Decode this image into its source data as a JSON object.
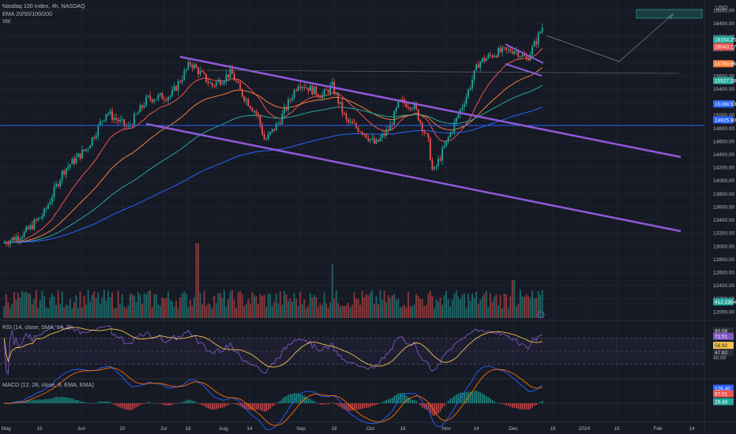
{
  "header": {
    "symbol_title": "Nasdaq 100 Index, 4h, NASDAQ",
    "ema_label": "EMA 20/50/100/200",
    "vol_label": "Vol",
    "rsi_label": "RSI (14, close, SMA, 14, 2)",
    "macd_label": "MACD (12, 26, close, 9, EMA, EMA)",
    "currency": "USD"
  },
  "colors": {
    "background": "#161a25",
    "grid": "#232836",
    "bull": "#26a69a",
    "bear": "#ef5350",
    "channel": "#8e5ad6",
    "horizontal_line": "#2962ff",
    "ema20": "#ef5350",
    "ema50": "#f57c3a",
    "ema100": "#26a69a",
    "ema200": "#2962ff",
    "rsi": "#7e57c2",
    "rsi_sma": "#f2c14e",
    "macd": "#2962ff",
    "signal": "#ff6d00"
  },
  "price_axis": {
    "ticks": [
      "16600.00",
      "16400.00",
      "16200.00",
      "16000.00",
      "15800.00",
      "15600.00",
      "15400.00",
      "15200.00",
      "15000.00",
      "14800.00",
      "14600.00",
      "14400.00",
      "14200.00",
      "14000.00",
      "13800.00",
      "13600.00",
      "13400.00",
      "13200.00",
      "13000.00",
      "12800.00",
      "12600.00",
      "12400.00",
      "12200.00",
      "12000.00"
    ],
    "tags": [
      {
        "label": "16154.25",
        "value": 16154.25,
        "bg": "#26a69a",
        "fg": "#ffffff"
      },
      {
        "label": "16043.17",
        "value": 16043.17,
        "bg": "#ef5350",
        "fg": "#ffffff"
      },
      {
        "label": "15783.66",
        "value": 15783.66,
        "bg": "#f57c3a",
        "fg": "#ffffff"
      },
      {
        "label": "15527.28",
        "value": 15527.28,
        "bg": "#26a69a",
        "fg": "#ffffff"
      },
      {
        "label": "15168.53",
        "value": 15168.53,
        "bg": "#2962ff",
        "fg": "#ffffff"
      },
      {
        "label": "14925.90",
        "value": 14925.9,
        "bg": "#2962ff",
        "fg": "#ffffff"
      },
      {
        "label": "412.1904K",
        "value": 12150,
        "bg": "#26a69a",
        "fg": "#ffffff"
      }
    ]
  },
  "rsi_axis": {
    "ticks": [
      "40.00"
    ],
    "tags": [
      {
        "label": "80.68",
        "value": 80.68,
        "bg": "#2a2e39",
        "fg": "#d1d4dc"
      },
      {
        "label": "72.51",
        "value": 72.51,
        "bg": "#7e57c2",
        "fg": "#ffffff"
      },
      {
        "label": "58.92",
        "value": 58.92,
        "bg": "#f2c14e",
        "fg": "#161a25"
      },
      {
        "label": "47.82",
        "value": 47.82,
        "bg": "#2a2e39",
        "fg": "#d1d4dc"
      }
    ]
  },
  "macd_axis": {
    "tags": [
      {
        "label": "126.40",
        "value": 126.4,
        "bg": "#2962ff",
        "fg": "#ffffff"
      },
      {
        "label": "97.01",
        "value": 97.01,
        "bg": "#ef5350",
        "fg": "#ffffff"
      },
      {
        "label": "29.40",
        "value": 29.4,
        "bg": "#26a69a",
        "fg": "#ffffff"
      }
    ]
  },
  "time_axis": {
    "labels": [
      "May",
      "15",
      "Jun",
      "20",
      "Jul",
      "18",
      "Aug",
      "14",
      "Sep",
      "18",
      "Oct",
      "16",
      "Nov",
      "14",
      "Dec",
      "18",
      "2024",
      "15",
      "Feb",
      "14"
    ]
  },
  "chart_data": {
    "type": "candlestick",
    "title": "Nasdaq 100 Index, 4h, NASDAQ",
    "x_range": [
      "May 2023",
      "Feb 2024"
    ],
    "y_unit": "USD",
    "ylim": [
      12000,
      16700
    ],
    "close_path": [
      {
        "date": "2023-05-01",
        "close": 13050
      },
      {
        "date": "2023-05-10",
        "close": 13200
      },
      {
        "date": "2023-05-18",
        "close": 13500
      },
      {
        "date": "2023-05-26",
        "close": 14150
      },
      {
        "date": "2023-06-05",
        "close": 14500
      },
      {
        "date": "2023-06-13",
        "close": 15050
      },
      {
        "date": "2023-06-22",
        "close": 14800
      },
      {
        "date": "2023-06-30",
        "close": 15250
      },
      {
        "date": "2023-07-10",
        "close": 15300
      },
      {
        "date": "2023-07-18",
        "close": 15800
      },
      {
        "date": "2023-07-27",
        "close": 15450
      },
      {
        "date": "2023-08-04",
        "close": 15650
      },
      {
        "date": "2023-08-08",
        "close": 15350
      },
      {
        "date": "2023-08-15",
        "close": 15000
      },
      {
        "date": "2023-08-18",
        "close": 14600
      },
      {
        "date": "2023-08-24",
        "close": 14900
      },
      {
        "date": "2023-09-01",
        "close": 15500
      },
      {
        "date": "2023-09-11",
        "close": 15300
      },
      {
        "date": "2023-09-15",
        "close": 15450
      },
      {
        "date": "2023-09-21",
        "close": 14900
      },
      {
        "date": "2023-09-28",
        "close": 14750
      },
      {
        "date": "2023-10-03",
        "close": 14550
      },
      {
        "date": "2023-10-09",
        "close": 14800
      },
      {
        "date": "2023-10-13",
        "close": 15200
      },
      {
        "date": "2023-10-19",
        "close": 15150
      },
      {
        "date": "2023-10-25",
        "close": 14600
      },
      {
        "date": "2023-10-27",
        "close": 14100
      },
      {
        "date": "2023-11-03",
        "close": 14700
      },
      {
        "date": "2023-11-10",
        "close": 15300
      },
      {
        "date": "2023-11-15",
        "close": 15800
      },
      {
        "date": "2023-11-22",
        "close": 15950
      },
      {
        "date": "2023-11-30",
        "close": 16000
      },
      {
        "date": "2023-12-05",
        "close": 15850
      },
      {
        "date": "2023-12-08",
        "close": 16050
      },
      {
        "date": "2023-12-12",
        "close": 16380
      }
    ],
    "overlays": [
      "EMA 20",
      "EMA 50",
      "EMA 100",
      "EMA 200"
    ],
    "annotations": [
      "descending channel",
      "falling wedge breakout",
      "projected target box near 16600"
    ],
    "sub_panels": [
      "Volume",
      "RSI (14)",
      "MACD (12, 26, 9)"
    ],
    "grid": true
  }
}
